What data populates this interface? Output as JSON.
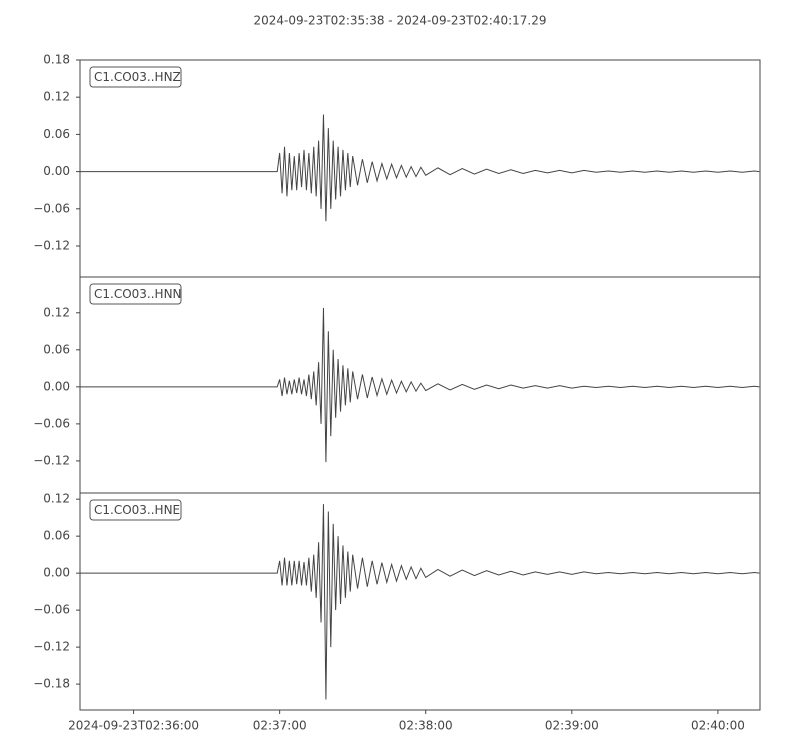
{
  "title": "2024-09-23T02:35:38  -  2024-09-23T02:40:17.29",
  "chart_data": [
    {
      "type": "line",
      "x": [
        "2024-09-23T02:35:38",
        "2024-09-23T02:36:59",
        "2024-09-23T02:37:00",
        "2024-09-23T02:37:01",
        "2024-09-23T02:37:02",
        "2024-09-23T02:37:03",
        "2024-09-23T02:37:04",
        "2024-09-23T02:37:05",
        "2024-09-23T02:37:06",
        "2024-09-23T02:37:07",
        "2024-09-23T02:37:08",
        "2024-09-23T02:37:09",
        "2024-09-23T02:37:10",
        "2024-09-23T02:37:11",
        "2024-09-23T02:37:12",
        "2024-09-23T02:37:13",
        "2024-09-23T02:37:14",
        "2024-09-23T02:37:15",
        "2024-09-23T02:37:16",
        "2024-09-23T02:37:17",
        "2024-09-23T02:37:18",
        "2024-09-23T02:37:19",
        "2024-09-23T02:37:20",
        "2024-09-23T02:37:21",
        "2024-09-23T02:37:22",
        "2024-09-23T02:37:23",
        "2024-09-23T02:37:24",
        "2024-09-23T02:37:25",
        "2024-09-23T02:37:26",
        "2024-09-23T02:37:27",
        "2024-09-23T02:37:28",
        "2024-09-23T02:37:29",
        "2024-09-23T02:37:30",
        "2024-09-23T02:37:32",
        "2024-09-23T02:37:34",
        "2024-09-23T02:37:36",
        "2024-09-23T02:37:38",
        "2024-09-23T02:37:40",
        "2024-09-23T02:37:42",
        "2024-09-23T02:37:44",
        "2024-09-23T02:37:46",
        "2024-09-23T02:37:48",
        "2024-09-23T02:37:50",
        "2024-09-23T02:37:52",
        "2024-09-23T02:37:54",
        "2024-09-23T02:37:56",
        "2024-09-23T02:37:58",
        "2024-09-23T02:38:00",
        "2024-09-23T02:38:05",
        "2024-09-23T02:38:10",
        "2024-09-23T02:38:15",
        "2024-09-23T02:38:20",
        "2024-09-23T02:38:25",
        "2024-09-23T02:38:30",
        "2024-09-23T02:38:35",
        "2024-09-23T02:38:40",
        "2024-09-23T02:38:45",
        "2024-09-23T02:38:50",
        "2024-09-23T02:38:55",
        "2024-09-23T02:39:00",
        "2024-09-23T02:39:05",
        "2024-09-23T02:39:10",
        "2024-09-23T02:39:15",
        "2024-09-23T02:39:20",
        "2024-09-23T02:39:25",
        "2024-09-23T02:39:30",
        "2024-09-23T02:39:35",
        "2024-09-23T02:39:40",
        "2024-09-23T02:39:45",
        "2024-09-23T02:39:50",
        "2024-09-23T02:39:55",
        "2024-09-23T02:40:00",
        "2024-09-23T02:40:05",
        "2024-09-23T02:40:10",
        "2024-09-23T02:40:15",
        "2024-09-23T02:40:17"
      ],
      "series": [
        {
          "name": "C1.CO03..HNZ",
          "color": "#444444",
          "values": [
            0,
            0,
            0.03,
            -0.035,
            0.04,
            -0.04,
            0.03,
            -0.03,
            0.025,
            -0.03,
            0.03,
            -0.025,
            0.035,
            -0.03,
            0.03,
            -0.035,
            0.04,
            -0.04,
            0.05,
            -0.06,
            0.092,
            -0.08,
            0.07,
            -0.06,
            0.05,
            -0.045,
            0.04,
            -0.04,
            0.035,
            -0.03,
            0.03,
            -0.025,
            0.025,
            -0.022,
            0.02,
            -0.018,
            0.016,
            -0.015,
            0.013,
            -0.012,
            0.012,
            -0.01,
            0.01,
            -0.009,
            0.008,
            -0.008,
            0.007,
            -0.006,
            0.006,
            -0.005,
            0.005,
            -0.004,
            0.004,
            -0.003,
            0.003,
            -0.003,
            0.002,
            -0.002,
            0.002,
            -0.002,
            0.002,
            -0.001,
            0.001,
            -0.001,
            0.001,
            -0.001,
            0.001,
            -0.001,
            0.001,
            -0.001,
            0.001,
            -0.001,
            0.001,
            -0.001,
            0.001,
            0
          ]
        }
      ],
      "xlim": [
        "2024-09-23T02:35:38",
        "2024-09-23T02:40:17.29"
      ],
      "ylim": [
        -0.17,
        0.18
      ],
      "yticks": [
        {
          "value": -0.12,
          "label": "−0.12"
        },
        {
          "value": -0.06,
          "label": "−0.06"
        },
        {
          "value": 0,
          "label": "0.00"
        },
        0.06,
        0.12,
        0.18
      ]
    },
    {
      "type": "line",
      "x": [
        "2024-09-23T02:35:38",
        "2024-09-23T02:36:59",
        "2024-09-23T02:37:00",
        "2024-09-23T02:37:01",
        "2024-09-23T02:37:02",
        "2024-09-23T02:37:03",
        "2024-09-23T02:37:04",
        "2024-09-23T02:37:05",
        "2024-09-23T02:37:06",
        "2024-09-23T02:37:07",
        "2024-09-23T02:37:08",
        "2024-09-23T02:37:09",
        "2024-09-23T02:37:10",
        "2024-09-23T02:37:11",
        "2024-09-23T02:37:12",
        "2024-09-23T02:37:13",
        "2024-09-23T02:37:14",
        "2024-09-23T02:37:15",
        "2024-09-23T02:37:16",
        "2024-09-23T02:37:17",
        "2024-09-23T02:37:18",
        "2024-09-23T02:37:19",
        "2024-09-23T02:37:20",
        "2024-09-23T02:37:21",
        "2024-09-23T02:37:22",
        "2024-09-23T02:37:23",
        "2024-09-23T02:37:24",
        "2024-09-23T02:37:25",
        "2024-09-23T02:37:26",
        "2024-09-23T02:37:27",
        "2024-09-23T02:37:28",
        "2024-09-23T02:37:29",
        "2024-09-23T02:37:30",
        "2024-09-23T02:37:32",
        "2024-09-23T02:37:34",
        "2024-09-23T02:37:36",
        "2024-09-23T02:37:38",
        "2024-09-23T02:37:40",
        "2024-09-23T02:37:42",
        "2024-09-23T02:37:44",
        "2024-09-23T02:37:46",
        "2024-09-23T02:37:48",
        "2024-09-23T02:37:50",
        "2024-09-23T02:37:52",
        "2024-09-23T02:37:54",
        "2024-09-23T02:37:56",
        "2024-09-23T02:37:58",
        "2024-09-23T02:38:00",
        "2024-09-23T02:38:05",
        "2024-09-23T02:38:10",
        "2024-09-23T02:38:15",
        "2024-09-23T02:38:20",
        "2024-09-23T02:38:25",
        "2024-09-23T02:38:30",
        "2024-09-23T02:38:35",
        "2024-09-23T02:38:40",
        "2024-09-23T02:38:45",
        "2024-09-23T02:38:50",
        "2024-09-23T02:38:55",
        "2024-09-23T02:39:00",
        "2024-09-23T02:39:05",
        "2024-09-23T02:39:10",
        "2024-09-23T02:39:15",
        "2024-09-23T02:39:20",
        "2024-09-23T02:39:25",
        "2024-09-23T02:39:30",
        "2024-09-23T02:39:35",
        "2024-09-23T02:39:40",
        "2024-09-23T02:39:45",
        "2024-09-23T02:39:50",
        "2024-09-23T02:39:55",
        "2024-09-23T02:40:00",
        "2024-09-23T02:40:05",
        "2024-09-23T02:40:10",
        "2024-09-23T02:40:15",
        "2024-09-23T02:40:17"
      ],
      "series": [
        {
          "name": "C1.CO03..HNN",
          "color": "#444444",
          "values": [
            0,
            0,
            0.012,
            -0.015,
            0.015,
            -0.012,
            0.01,
            -0.012,
            0.012,
            -0.01,
            0.015,
            -0.012,
            0.012,
            -0.015,
            0.02,
            -0.02,
            0.025,
            -0.03,
            0.04,
            -0.06,
            0.128,
            -0.122,
            0.09,
            -0.08,
            0.06,
            -0.05,
            0.045,
            -0.04,
            0.035,
            -0.03,
            0.03,
            -0.025,
            0.025,
            -0.02,
            0.02,
            -0.018,
            0.016,
            -0.014,
            0.013,
            -0.012,
            0.011,
            -0.01,
            0.009,
            -0.008,
            0.008,
            -0.007,
            0.006,
            -0.006,
            0.005,
            -0.005,
            0.004,
            -0.004,
            0.003,
            -0.003,
            0.003,
            -0.002,
            0.002,
            -0.002,
            0.002,
            -0.002,
            0.001,
            -0.001,
            0.001,
            -0.001,
            0.001,
            -0.001,
            0.001,
            -0.001,
            0.001,
            -0.001,
            0.001,
            -0.001,
            0.001,
            -0.001,
            0.001,
            0
          ]
        }
      ],
      "xlim": [
        "2024-09-23T02:35:38",
        "2024-09-23T02:40:17.29"
      ],
      "ylim": [
        -0.172,
        0.178
      ],
      "yticks": [
        {
          "value": -0.12,
          "label": "−0.12"
        },
        {
          "value": -0.06,
          "label": "−0.06"
        },
        {
          "value": 0,
          "label": "0.00"
        },
        0.06,
        0.12
      ]
    },
    {
      "type": "line",
      "x": [
        "2024-09-23T02:35:38",
        "2024-09-23T02:36:59",
        "2024-09-23T02:37:00",
        "2024-09-23T02:37:01",
        "2024-09-23T02:37:02",
        "2024-09-23T02:37:03",
        "2024-09-23T02:37:04",
        "2024-09-23T02:37:05",
        "2024-09-23T02:37:06",
        "2024-09-23T02:37:07",
        "2024-09-23T02:37:08",
        "2024-09-23T02:37:09",
        "2024-09-23T02:37:10",
        "2024-09-23T02:37:11",
        "2024-09-23T02:37:12",
        "2024-09-23T02:37:13",
        "2024-09-23T02:37:14",
        "2024-09-23T02:37:15",
        "2024-09-23T02:37:16",
        "2024-09-23T02:37:17",
        "2024-09-23T02:37:18",
        "2024-09-23T02:37:19",
        "2024-09-23T02:37:20",
        "2024-09-23T02:37:21",
        "2024-09-23T02:37:22",
        "2024-09-23T02:37:23",
        "2024-09-23T02:37:24",
        "2024-09-23T02:37:25",
        "2024-09-23T02:37:26",
        "2024-09-23T02:37:27",
        "2024-09-23T02:37:28",
        "2024-09-23T02:37:29",
        "2024-09-23T02:37:30",
        "2024-09-23T02:37:32",
        "2024-09-23T02:37:34",
        "2024-09-23T02:37:36",
        "2024-09-23T02:37:38",
        "2024-09-23T02:37:40",
        "2024-09-23T02:37:42",
        "2024-09-23T02:37:44",
        "2024-09-23T02:37:46",
        "2024-09-23T02:37:48",
        "2024-09-23T02:37:50",
        "2024-09-23T02:37:52",
        "2024-09-23T02:37:54",
        "2024-09-23T02:37:56",
        "2024-09-23T02:37:58",
        "2024-09-23T02:38:00",
        "2024-09-23T02:38:05",
        "2024-09-23T02:38:10",
        "2024-09-23T02:38:15",
        "2024-09-23T02:38:20",
        "2024-09-23T02:38:25",
        "2024-09-23T02:38:30",
        "2024-09-23T02:38:35",
        "2024-09-23T02:38:40",
        "2024-09-23T02:38:45",
        "2024-09-23T02:38:50",
        "2024-09-23T02:38:55",
        "2024-09-23T02:39:00",
        "2024-09-23T02:39:05",
        "2024-09-23T02:39:10",
        "2024-09-23T02:39:15",
        "2024-09-23T02:39:20",
        "2024-09-23T02:39:25",
        "2024-09-23T02:39:30",
        "2024-09-23T02:39:35",
        "2024-09-23T02:39:40",
        "2024-09-23T02:39:45",
        "2024-09-23T02:39:50",
        "2024-09-23T02:39:55",
        "2024-09-23T02:40:00",
        "2024-09-23T02:40:05",
        "2024-09-23T02:40:10",
        "2024-09-23T02:40:15",
        "2024-09-23T02:40:17"
      ],
      "series": [
        {
          "name": "C1.CO03..HNE",
          "color": "#444444",
          "values": [
            0,
            0,
            0.02,
            -0.02,
            0.025,
            -0.02,
            0.02,
            -0.02,
            0.02,
            -0.018,
            0.02,
            -0.02,
            0.018,
            -0.02,
            0.025,
            -0.03,
            0.03,
            -0.04,
            0.05,
            -0.08,
            0.112,
            -0.205,
            0.1,
            -0.12,
            0.08,
            -0.06,
            0.06,
            -0.05,
            0.045,
            -0.04,
            0.035,
            -0.03,
            0.03,
            -0.025,
            0.025,
            -0.022,
            0.02,
            -0.018,
            0.017,
            -0.015,
            0.014,
            -0.013,
            0.012,
            -0.01,
            0.01,
            -0.009,
            0.008,
            -0.007,
            0.006,
            -0.005,
            0.005,
            -0.004,
            0.004,
            -0.003,
            0.003,
            -0.003,
            0.002,
            -0.002,
            0.002,
            -0.002,
            0.002,
            -0.001,
            0.001,
            -0.001,
            0.001,
            -0.001,
            0.001,
            -0.001,
            0.001,
            -0.001,
            0.001,
            -0.001,
            0.001,
            -0.001,
            0.001,
            0
          ]
        }
      ],
      "xlim": [
        "2024-09-23T02:35:38",
        "2024-09-23T02:40:17.29"
      ],
      "ylim": [
        -0.222,
        0.13
      ],
      "yticks": [
        {
          "value": -0.18,
          "label": "−0.18"
        },
        {
          "value": -0.12,
          "label": "−0.12"
        },
        {
          "value": -0.06,
          "label": "−0.06"
        },
        {
          "value": 0,
          "label": "0.00"
        },
        0.06,
        0.12
      ],
      "xticks": [
        {
          "value": "2024-09-23T02:36:00",
          "label": "2024-09-23T02:36:00"
        },
        {
          "value": "2024-09-23T02:37:00",
          "label": "02:37:00"
        },
        {
          "value": "2024-09-23T02:38:00",
          "label": "02:38:00"
        },
        {
          "value": "2024-09-23T02:39:00",
          "label": "02:39:00"
        },
        {
          "value": "2024-09-23T02:40:00",
          "label": "02:40:00"
        }
      ]
    }
  ]
}
